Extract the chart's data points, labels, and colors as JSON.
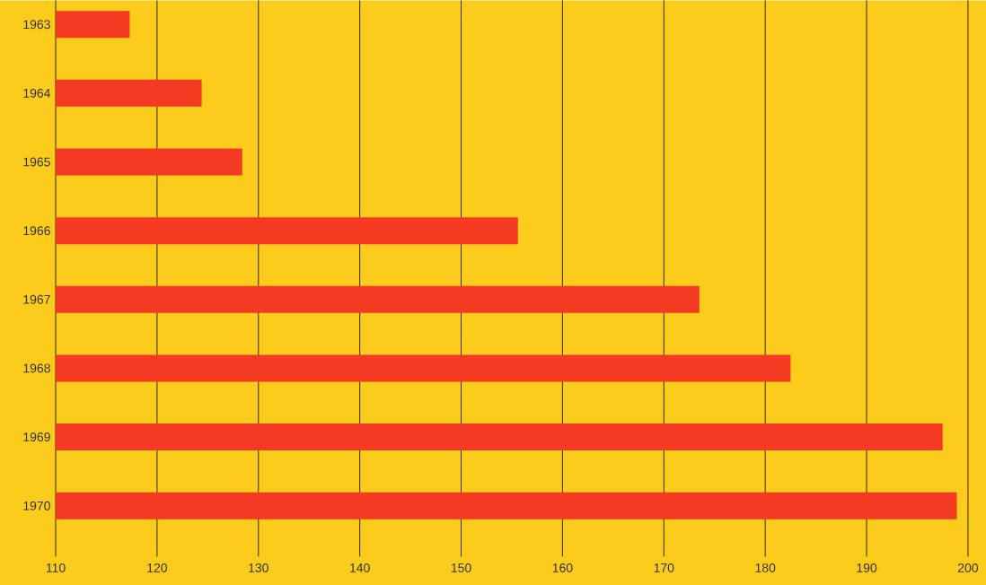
{
  "chart_data": {
    "type": "bar",
    "orientation": "horizontal",
    "categories": [
      "1963",
      "1964",
      "1965",
      "1966",
      "1967",
      "1968",
      "1969",
      "1970"
    ],
    "values": [
      117.3,
      124.4,
      128.4,
      155.6,
      173.5,
      182.5,
      197.5,
      198.9
    ],
    "color": "#f43a22",
    "xlim": [
      110,
      200
    ],
    "xticks": [
      110,
      120,
      130,
      140,
      150,
      160,
      170,
      180,
      190,
      200
    ],
    "grid": "x"
  }
}
